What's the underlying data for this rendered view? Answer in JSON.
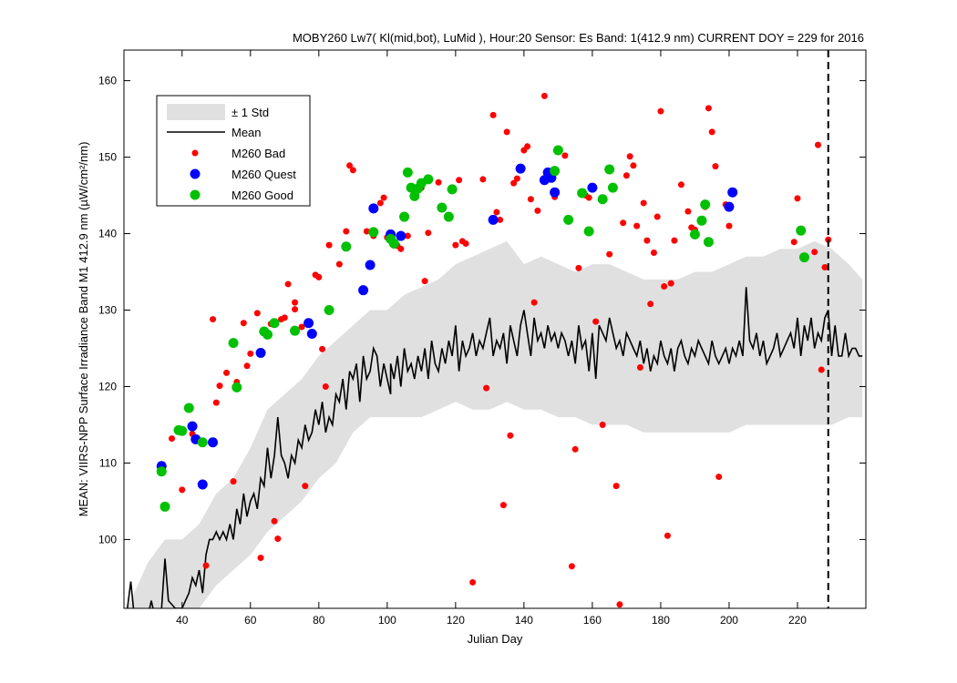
{
  "chart_data": {
    "type": "scatter",
    "title": "MOBY260   Lw7( Kl(mid,bot), LuMid ),   Hour:20 Sensor: Es Band: 1(412.9 nm)   CURRENT DOY = 229 for 2016",
    "xlabel": "Julian Day",
    "ylabel": "MEAN: VIIRS-NPP Surface Irradiance Band M1 412.9 nm (µW/cm²/nm)",
    "xlim": [
      23,
      240
    ],
    "ylim": [
      91,
      164
    ],
    "xticks": [
      40,
      60,
      80,
      100,
      120,
      140,
      160,
      180,
      200,
      220
    ],
    "yticks": [
      100,
      110,
      120,
      130,
      140,
      150,
      160
    ],
    "current_doy": 229,
    "grid": false,
    "legend_position": "top-left",
    "legend": [
      "± 1 Std",
      "Mean",
      "M260 Bad",
      "M260 Quest",
      "M260 Good"
    ],
    "colors": {
      "bad": "#ff0000",
      "quest": "#0000ff",
      "good": "#00c000",
      "mean": "#000000",
      "std": "#e0e0e0"
    },
    "mean_series": [
      [
        24,
        91
      ],
      [
        25,
        94.5
      ],
      [
        26,
        90
      ],
      [
        30,
        90
      ],
      [
        31,
        92
      ],
      [
        32,
        90
      ],
      [
        34,
        91
      ],
      [
        35,
        97.5
      ],
      [
        36,
        92
      ],
      [
        38,
        91
      ],
      [
        40,
        91
      ],
      [
        41,
        92
      ],
      [
        42,
        93
      ],
      [
        43,
        95
      ],
      [
        44,
        94
      ],
      [
        45,
        96
      ],
      [
        46,
        93
      ],
      [
        47,
        98
      ],
      [
        48,
        100
      ],
      [
        49,
        100
      ],
      [
        50,
        101
      ],
      [
        51,
        100
      ],
      [
        52,
        101
      ],
      [
        53,
        100
      ],
      [
        54,
        102
      ],
      [
        55,
        100
      ],
      [
        56,
        104
      ],
      [
        57,
        102
      ],
      [
        58,
        106
      ],
      [
        59,
        103
      ],
      [
        60,
        105
      ],
      [
        61,
        106
      ],
      [
        62,
        104
      ],
      [
        63,
        108
      ],
      [
        64,
        107
      ],
      [
        65,
        112
      ],
      [
        66,
        108
      ],
      [
        67,
        111
      ],
      [
        68,
        116
      ],
      [
        69,
        111
      ],
      [
        70,
        110
      ],
      [
        71,
        108
      ],
      [
        72,
        111
      ],
      [
        73,
        110
      ],
      [
        74,
        113
      ],
      [
        75,
        112
      ],
      [
        76,
        115
      ],
      [
        77,
        113
      ],
      [
        78,
        114
      ],
      [
        79,
        117
      ],
      [
        80,
        115
      ],
      [
        81,
        118
      ],
      [
        82,
        114
      ],
      [
        83,
        116
      ],
      [
        84,
        115
      ],
      [
        85,
        119
      ],
      [
        86,
        118
      ],
      [
        87,
        121
      ],
      [
        88,
        117
      ],
      [
        89,
        122
      ],
      [
        90,
        121
      ],
      [
        91,
        123
      ],
      [
        92,
        118
      ],
      [
        93,
        124
      ],
      [
        94,
        121
      ],
      [
        95,
        122
      ],
      [
        96,
        125
      ],
      [
        97,
        124
      ],
      [
        98,
        120
      ],
      [
        99,
        123
      ],
      [
        100,
        121
      ],
      [
        101,
        119
      ],
      [
        101,
        123
      ],
      [
        102,
        121
      ],
      [
        103,
        124
      ],
      [
        104,
        120
      ],
      [
        105,
        125
      ],
      [
        106,
        122
      ],
      [
        107,
        123
      ],
      [
        108,
        121
      ],
      [
        109,
        124
      ],
      [
        110,
        122
      ],
      [
        111,
        125
      ],
      [
        112,
        121
      ],
      [
        113,
        126
      ],
      [
        114,
        123
      ],
      [
        115,
        122
      ],
      [
        116,
        125
      ],
      [
        117,
        123
      ],
      [
        118,
        126
      ],
      [
        119,
        124
      ],
      [
        120,
        128
      ],
      [
        121,
        122
      ],
      [
        122,
        126
      ],
      [
        123,
        124
      ],
      [
        124,
        125
      ],
      [
        125,
        127
      ],
      [
        126,
        124
      ],
      [
        127,
        126
      ],
      [
        128,
        125
      ],
      [
        129,
        127
      ],
      [
        130,
        129
      ],
      [
        131,
        124
      ],
      [
        132,
        126
      ],
      [
        133,
        125
      ],
      [
        134,
        127
      ],
      [
        135,
        123
      ],
      [
        136,
        128
      ],
      [
        137,
        126
      ],
      [
        138,
        124
      ],
      [
        139,
        128
      ],
      [
        140,
        130
      ],
      [
        141,
        127
      ],
      [
        142,
        124
      ],
      [
        143,
        129
      ],
      [
        144,
        126
      ],
      [
        145,
        127
      ],
      [
        146,
        125
      ],
      [
        147,
        128
      ],
      [
        148,
        126
      ],
      [
        149,
        127
      ],
      [
        150,
        125
      ],
      [
        151,
        127
      ],
      [
        152,
        126
      ],
      [
        153,
        124
      ],
      [
        154,
        126
      ],
      [
        155,
        123
      ],
      [
        156,
        128
      ],
      [
        157,
        125
      ],
      [
        158,
        126
      ],
      [
        159,
        122
      ],
      [
        160,
        127
      ],
      [
        161,
        121
      ],
      [
        162,
        128
      ],
      [
        163,
        127
      ],
      [
        164,
        126
      ],
      [
        165,
        129
      ],
      [
        166,
        127
      ],
      [
        167,
        125
      ],
      [
        168,
        126
      ],
      [
        169,
        124
      ],
      [
        170,
        127
      ],
      [
        171,
        126
      ],
      [
        172,
        125
      ],
      [
        173,
        124
      ],
      [
        174,
        126
      ],
      [
        175,
        123
      ],
      [
        176,
        125
      ],
      [
        177,
        122
      ],
      [
        178,
        124
      ],
      [
        179,
        123
      ],
      [
        180,
        126
      ],
      [
        181,
        124
      ],
      [
        182,
        123
      ],
      [
        183,
        125
      ],
      [
        184,
        122
      ],
      [
        185,
        125
      ],
      [
        186,
        126
      ],
      [
        187,
        124
      ],
      [
        188,
        123
      ],
      [
        189,
        125
      ],
      [
        190,
        124
      ],
      [
        191,
        126
      ],
      [
        192,
        125
      ],
      [
        193,
        124
      ],
      [
        194,
        123
      ],
      [
        195,
        126
      ],
      [
        196,
        124
      ],
      [
        197,
        123
      ],
      [
        198,
        124
      ],
      [
        199,
        125
      ],
      [
        200,
        123
      ],
      [
        201,
        125
      ],
      [
        202,
        124
      ],
      [
        203,
        126
      ],
      [
        204,
        124
      ],
      [
        205,
        133
      ],
      [
        206,
        126
      ],
      [
        207,
        125
      ],
      [
        208,
        127
      ],
      [
        209,
        124
      ],
      [
        210,
        126
      ],
      [
        211,
        123
      ],
      [
        212,
        124
      ],
      [
        213,
        125
      ],
      [
        214,
        127
      ],
      [
        215,
        124
      ],
      [
        216,
        125
      ],
      [
        217,
        126
      ],
      [
        218,
        127
      ],
      [
        219,
        125
      ],
      [
        220,
        129
      ],
      [
        221,
        124
      ],
      [
        222,
        128
      ],
      [
        223,
        126
      ],
      [
        224,
        129
      ],
      [
        225,
        125
      ],
      [
        226,
        127
      ],
      [
        227,
        126
      ],
      [
        228,
        129
      ],
      [
        229,
        130
      ],
      [
        230,
        124
      ],
      [
        231,
        128
      ],
      [
        232,
        124
      ],
      [
        233,
        124
      ],
      [
        234,
        127
      ],
      [
        235,
        124
      ],
      [
        236,
        125
      ],
      [
        237,
        125
      ],
      [
        238,
        124
      ],
      [
        239,
        124
      ]
    ],
    "std_band": [
      [
        24,
        91,
        91
      ],
      [
        28,
        91,
        95
      ],
      [
        30,
        91,
        97
      ],
      [
        35,
        91,
        100
      ],
      [
        40,
        91,
        100
      ],
      [
        45,
        91,
        102
      ],
      [
        50,
        94,
        106
      ],
      [
        55,
        96,
        108
      ],
      [
        60,
        98,
        112
      ],
      [
        65,
        101,
        117
      ],
      [
        70,
        103,
        119
      ],
      [
        75,
        105,
        121
      ],
      [
        80,
        108,
        124
      ],
      [
        85,
        110,
        126
      ],
      [
        90,
        114,
        128
      ],
      [
        95,
        116,
        130
      ],
      [
        100,
        116,
        130
      ],
      [
        105,
        116,
        132
      ],
      [
        110,
        116,
        133
      ],
      [
        115,
        117,
        134
      ],
      [
        120,
        118,
        136
      ],
      [
        125,
        117,
        137
      ],
      [
        130,
        117,
        138
      ],
      [
        135,
        118,
        139
      ],
      [
        140,
        117,
        136
      ],
      [
        145,
        117,
        137
      ],
      [
        150,
        116,
        136
      ],
      [
        155,
        116,
        135
      ],
      [
        160,
        115,
        136
      ],
      [
        165,
        115,
        136
      ],
      [
        170,
        115,
        135
      ],
      [
        175,
        114,
        134
      ],
      [
        180,
        114,
        134
      ],
      [
        185,
        114,
        134
      ],
      [
        190,
        114,
        135
      ],
      [
        195,
        114,
        135
      ],
      [
        200,
        114,
        136
      ],
      [
        205,
        115,
        137
      ],
      [
        210,
        115,
        137
      ],
      [
        215,
        115,
        138
      ],
      [
        220,
        115,
        138
      ],
      [
        225,
        115,
        139
      ],
      [
        230,
        115,
        138
      ],
      [
        235,
        116,
        136
      ],
      [
        239,
        116,
        134
      ]
    ],
    "bad": [
      [
        37,
        113.2
      ],
      [
        40,
        106.5
      ],
      [
        43,
        113.8
      ],
      [
        47,
        96.6
      ],
      [
        49,
        128.8
      ],
      [
        50,
        117.9
      ],
      [
        51,
        120.1
      ],
      [
        53,
        121.8
      ],
      [
        55,
        107.6
      ],
      [
        56,
        120.6
      ],
      [
        58,
        128.3
      ],
      [
        59,
        122.7
      ],
      [
        60,
        124.3
      ],
      [
        62,
        129.6
      ],
      [
        63,
        97.6
      ],
      [
        66,
        128.2
      ],
      [
        67,
        102.4
      ],
      [
        68,
        100.1
      ],
      [
        69,
        128.8
      ],
      [
        70,
        129.0
      ],
      [
        71,
        133.4
      ],
      [
        73,
        130.1
      ],
      [
        73,
        131.0
      ],
      [
        75,
        127.8
      ],
      [
        76,
        107.0
      ],
      [
        79,
        134.6
      ],
      [
        80,
        134.3
      ],
      [
        81,
        124.9
      ],
      [
        82,
        120.0
      ],
      [
        83,
        138.5
      ],
      [
        86,
        136.0
      ],
      [
        88,
        140.3
      ],
      [
        89,
        148.9
      ],
      [
        90,
        148.3
      ],
      [
        94,
        140.3
      ],
      [
        96,
        139.7
      ],
      [
        98,
        144.0
      ],
      [
        99,
        144.7
      ],
      [
        100,
        139.5
      ],
      [
        103,
        138.4
      ],
      [
        104,
        138.0
      ],
      [
        106,
        139.7
      ],
      [
        108,
        144.8
      ],
      [
        110,
        146.0
      ],
      [
        111,
        133.8
      ],
      [
        112,
        140.1
      ],
      [
        115,
        146.7
      ],
      [
        120,
        138.5
      ],
      [
        121,
        147.0
      ],
      [
        122,
        139.0
      ],
      [
        123,
        138.7
      ],
      [
        125,
        94.4
      ],
      [
        128,
        147.1
      ],
      [
        129,
        119.8
      ],
      [
        131,
        155.5
      ],
      [
        132,
        142.8
      ],
      [
        133,
        141.8
      ],
      [
        134,
        104.5
      ],
      [
        135,
        153.3
      ],
      [
        136,
        113.6
      ],
      [
        137,
        146.6
      ],
      [
        138,
        147.2
      ],
      [
        140,
        150.9
      ],
      [
        141,
        151.4
      ],
      [
        142,
        144.5
      ],
      [
        143,
        131.0
      ],
      [
        144,
        143.0
      ],
      [
        146,
        158.0
      ],
      [
        149,
        144.8
      ],
      [
        152,
        150.2
      ],
      [
        154,
        96.5
      ],
      [
        155,
        111.8
      ],
      [
        156,
        135.5
      ],
      [
        158,
        145.0
      ],
      [
        159,
        144.7
      ],
      [
        161,
        128.5
      ],
      [
        163,
        115.0
      ],
      [
        165,
        137.3
      ],
      [
        167,
        107.0
      ],
      [
        168,
        91.5
      ],
      [
        169,
        141.4
      ],
      [
        170,
        147.6
      ],
      [
        171,
        150.1
      ],
      [
        172,
        148.9
      ],
      [
        173,
        141.0
      ],
      [
        174,
        122.5
      ],
      [
        175,
        144.0
      ],
      [
        176,
        139.1
      ],
      [
        177,
        130.8
      ],
      [
        178,
        137.5
      ],
      [
        179,
        142.2
      ],
      [
        180,
        156.0
      ],
      [
        181,
        133.1
      ],
      [
        182,
        100.5
      ],
      [
        183,
        133.5
      ],
      [
        184,
        139.1
      ],
      [
        186,
        146.4
      ],
      [
        188,
        142.9
      ],
      [
        189,
        140.8
      ],
      [
        190,
        140.5
      ],
      [
        193,
        143.5
      ],
      [
        194,
        156.4
      ],
      [
        195,
        153.3
      ],
      [
        196,
        148.8
      ],
      [
        197,
        108.2
      ],
      [
        199,
        143.8
      ],
      [
        200,
        141.0
      ],
      [
        219,
        138.9
      ],
      [
        220,
        144.6
      ],
      [
        225,
        137.6
      ],
      [
        226,
        151.6
      ],
      [
        227,
        122.2
      ],
      [
        228,
        135.6
      ],
      [
        229,
        139.2
      ]
    ],
    "quest": [
      [
        34,
        109.6
      ],
      [
        43,
        114.8
      ],
      [
        44,
        113.1
      ],
      [
        46,
        107.2
      ],
      [
        49,
        112.7
      ],
      [
        63,
        124.4
      ],
      [
        77,
        128.3
      ],
      [
        78,
        126.9
      ],
      [
        93,
        132.6
      ],
      [
        95,
        135.9
      ],
      [
        96,
        143.3
      ],
      [
        101,
        139.9
      ],
      [
        104,
        139.7
      ],
      [
        131,
        141.8
      ],
      [
        139,
        148.5
      ],
      [
        146,
        147.0
      ],
      [
        147,
        148.0
      ],
      [
        148,
        147.3
      ],
      [
        149,
        145.4
      ],
      [
        160,
        146.0
      ],
      [
        200,
        143.5
      ],
      [
        201,
        145.4
      ]
    ],
    "good": [
      [
        34,
        108.9
      ],
      [
        35,
        104.3
      ],
      [
        39,
        114.3
      ],
      [
        40,
        114.2
      ],
      [
        42,
        117.2
      ],
      [
        46,
        112.7
      ],
      [
        55,
        125.7
      ],
      [
        56,
        119.9
      ],
      [
        64,
        127.2
      ],
      [
        65,
        126.8
      ],
      [
        67,
        128.3
      ],
      [
        73,
        127.3
      ],
      [
        83,
        130.0
      ],
      [
        88,
        138.3
      ],
      [
        96,
        140.2
      ],
      [
        101,
        139.3
      ],
      [
        102,
        138.7
      ],
      [
        105,
        142.2
      ],
      [
        106,
        148.0
      ],
      [
        107,
        146.0
      ],
      [
        108,
        144.9
      ],
      [
        109,
        145.9
      ],
      [
        110,
        146.6
      ],
      [
        112,
        147.1
      ],
      [
        116,
        143.4
      ],
      [
        118,
        142.2
      ],
      [
        119,
        145.8
      ],
      [
        149,
        148.2
      ],
      [
        150,
        150.9
      ],
      [
        153,
        141.8
      ],
      [
        157,
        145.3
      ],
      [
        159,
        140.3
      ],
      [
        163,
        144.5
      ],
      [
        165,
        148.4
      ],
      [
        166,
        146.0
      ],
      [
        190,
        139.9
      ],
      [
        192,
        141.7
      ],
      [
        193,
        143.8
      ],
      [
        194,
        138.9
      ],
      [
        221,
        140.4
      ],
      [
        222,
        136.9
      ]
    ]
  }
}
